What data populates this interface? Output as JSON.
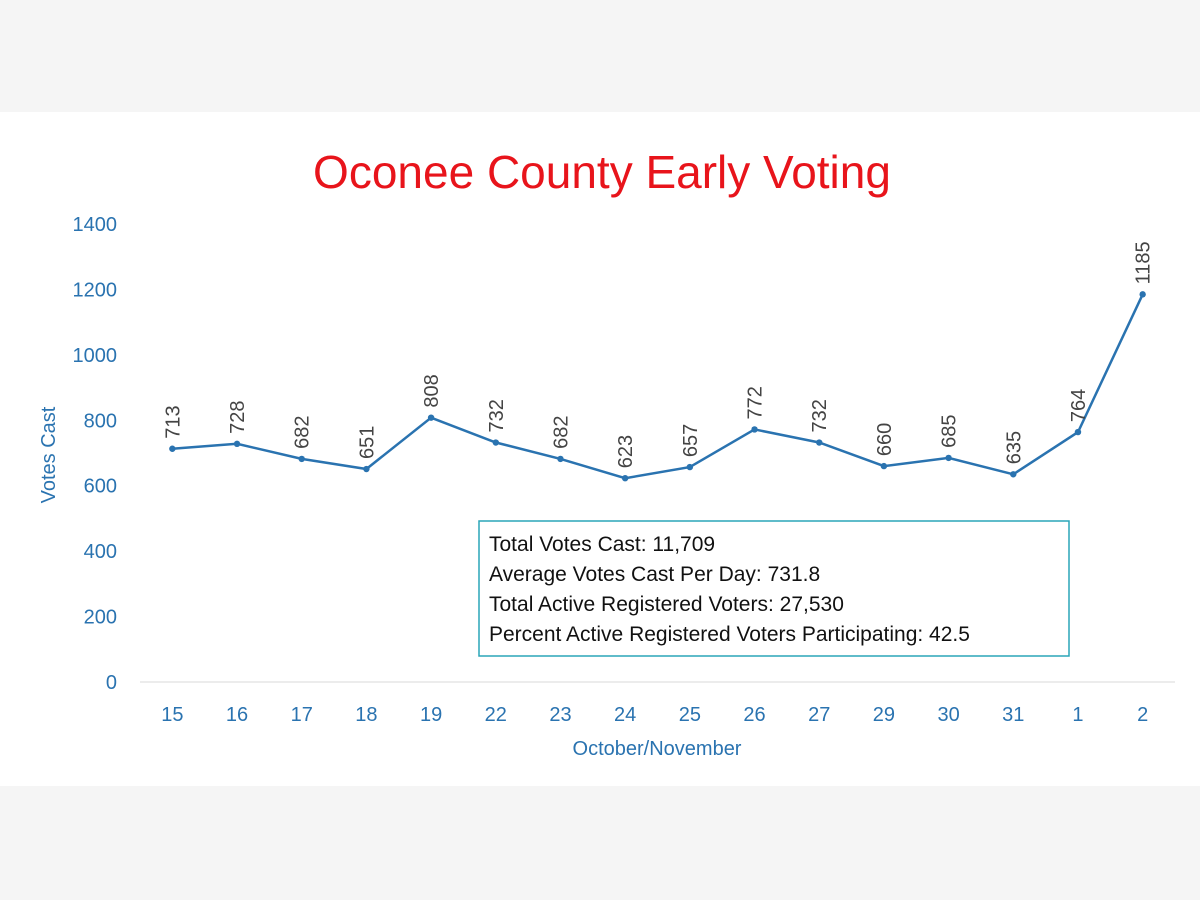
{
  "chart_data": {
    "type": "line",
    "title": "Oconee County Early Voting",
    "xlabel": "October/November",
    "ylabel": "Votes Cast",
    "ylim": [
      0,
      1400
    ],
    "yticks": [
      0,
      200,
      400,
      600,
      800,
      1000,
      1200,
      1400
    ],
    "grid": false,
    "categories": [
      "15",
      "16",
      "17",
      "18",
      "19",
      "22",
      "23",
      "24",
      "25",
      "26",
      "27",
      "29",
      "30",
      "31",
      "1",
      "2"
    ],
    "values": [
      713,
      728,
      682,
      651,
      808,
      732,
      682,
      623,
      657,
      772,
      732,
      660,
      685,
      635,
      764,
      1185
    ],
    "colors": {
      "line": "#2a73b0",
      "axis_text": "#2a73b0",
      "title": "#e8141b",
      "box_border": "#2aa6b8"
    }
  },
  "info_box": {
    "lines": [
      "Total Votes Cast: 11,709",
      "Average Votes Cast Per Day: 731.8",
      "Total Active Registered Voters: 27,530",
      "Percent Active Registered Voters Participating: 42.5"
    ]
  }
}
